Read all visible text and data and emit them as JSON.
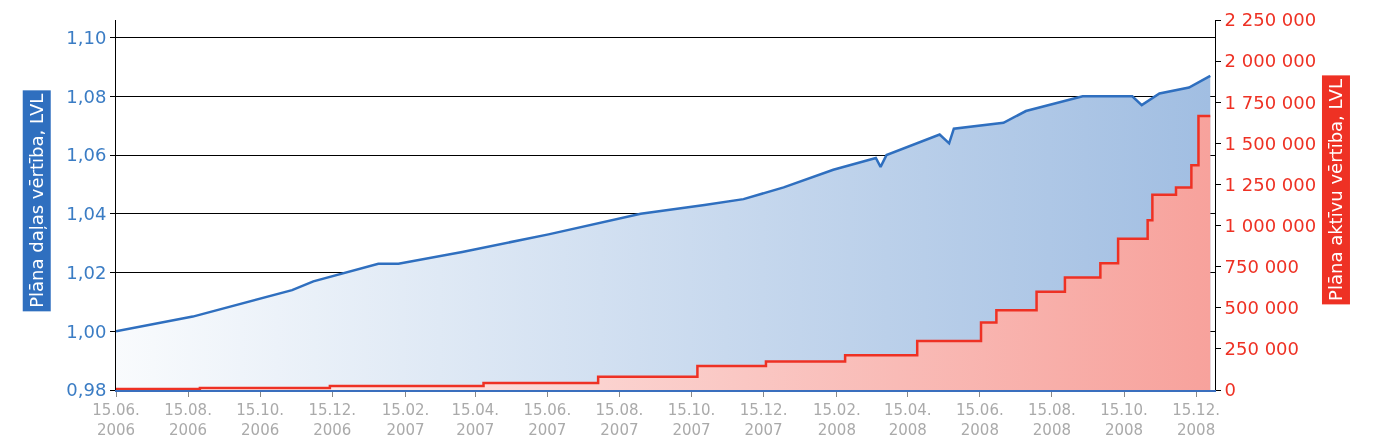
{
  "chart_data": {
    "type": "area",
    "ylabel": "Plāna daļas vērtība, LVL",
    "y2label": "Plāna aktīvu vērtība, LVL",
    "xlim": [
      "2006-06-15",
      "2008-12-31"
    ],
    "xticks": [
      {
        "value": "2006-06-15",
        "label": "15.06.\n2006"
      },
      {
        "value": "2006-08-15",
        "label": "15.08.\n2006"
      },
      {
        "value": "2006-10-15",
        "label": "15.10.\n2006"
      },
      {
        "value": "2006-12-15",
        "label": "15.12.\n2006"
      },
      {
        "value": "2007-02-15",
        "label": "15.02.\n2007"
      },
      {
        "value": "2007-04-15",
        "label": "15.04.\n2007"
      },
      {
        "value": "2007-06-15",
        "label": "15.06.\n2007"
      },
      {
        "value": "2007-08-15",
        "label": "15.08.\n2007"
      },
      {
        "value": "2007-10-15",
        "label": "15.10.\n2007"
      },
      {
        "value": "2007-12-15",
        "label": "15.12.\n2007"
      },
      {
        "value": "2008-02-15",
        "label": "15.02.\n2008"
      },
      {
        "value": "2008-04-15",
        "label": "15.04.\n2008"
      },
      {
        "value": "2008-06-15",
        "label": "15.06.\n2008"
      },
      {
        "value": "2008-08-15",
        "label": "15.08.\n2008"
      },
      {
        "value": "2008-10-15",
        "label": "15.10.\n2008"
      },
      {
        "value": "2008-12-15",
        "label": "15.12.\n2008"
      }
    ],
    "ylim": [
      0.98,
      1.106
    ],
    "yticks": [
      {
        "value": 0.98,
        "label": "0,98"
      },
      {
        "value": 1.0,
        "label": "1,00"
      },
      {
        "value": 1.02,
        "label": "1,02"
      },
      {
        "value": 1.04,
        "label": "1,04"
      },
      {
        "value": 1.06,
        "label": "1,06"
      },
      {
        "value": 1.08,
        "label": "1,08"
      },
      {
        "value": 1.1,
        "label": "1,10"
      }
    ],
    "y2lim": [
      0,
      2250000
    ],
    "y2ticks": [
      {
        "value": 0,
        "label": "0"
      },
      {
        "value": 250000,
        "label": "250 000"
      },
      {
        "value": 500000,
        "label": "500 000"
      },
      {
        "value": 750000,
        "label": "750 000"
      },
      {
        "value": 1000000,
        "label": "1 000 000"
      },
      {
        "value": 1250000,
        "label": "1 250 000"
      },
      {
        "value": 1500000,
        "label": "1 500 000"
      },
      {
        "value": 1750000,
        "label": "1 750 000"
      },
      {
        "value": 2000000,
        "label": "2 000 000"
      },
      {
        "value": 2250000,
        "label": "2 250 000"
      }
    ],
    "grid": "y",
    "series": [
      {
        "color": "#2f6fbf",
        "x": [
          "2006-06-15",
          "2006-08-19",
          "2006-11-11",
          "2006-11-29",
          "2007-01-23",
          "2007-02-09",
          "2007-04-04",
          "2007-06-16",
          "2007-09-02",
          "2007-10-26",
          "2007-11-28",
          "2008-01-01",
          "2008-02-12",
          "2008-03-19",
          "2008-03-23",
          "2008-03-28",
          "2008-05-12",
          "2008-05-20",
          "2008-05-24",
          "2008-07-05",
          "2008-07-24",
          "2008-09-10",
          "2008-10-03",
          "2008-10-22",
          "2008-10-30",
          "2008-11-14",
          "2008-12-09",
          "2008-12-27"
        ],
        "values": [
          1.0,
          1.005,
          1.014,
          1.017,
          1.023,
          1.023,
          1.027,
          1.033,
          1.04,
          1.043,
          1.045,
          1.049,
          1.055,
          1.059,
          1.056,
          1.06,
          1.067,
          1.064,
          1.069,
          1.071,
          1.075,
          1.08,
          1.08,
          1.08,
          1.077,
          1.081,
          1.083,
          1.087
        ]
      },
      {
        "type": "step",
        "axis": "y2",
        "color": "#ee3124",
        "x": [
          "2006-06-15",
          "2006-08-25",
          "2006-12-13",
          "2007-04-22",
          "2007-07-28",
          "2007-10-20",
          "2007-12-17",
          "2008-02-22",
          "2008-04-23",
          "2008-06-16",
          "2008-06-29",
          "2008-08-02",
          "2008-08-26",
          "2008-09-25",
          "2008-10-10",
          "2008-11-04",
          "2008-11-08",
          "2008-11-28",
          "2008-12-11",
          "2008-12-17",
          "2008-12-27"
        ],
        "values": [
          6000,
          12000,
          25000,
          43000,
          81000,
          146000,
          174000,
          211000,
          298000,
          410000,
          485000,
          597000,
          684000,
          771000,
          920000,
          1032000,
          1187000,
          1231000,
          1367000,
          1666000,
          1666000
        ]
      }
    ]
  }
}
